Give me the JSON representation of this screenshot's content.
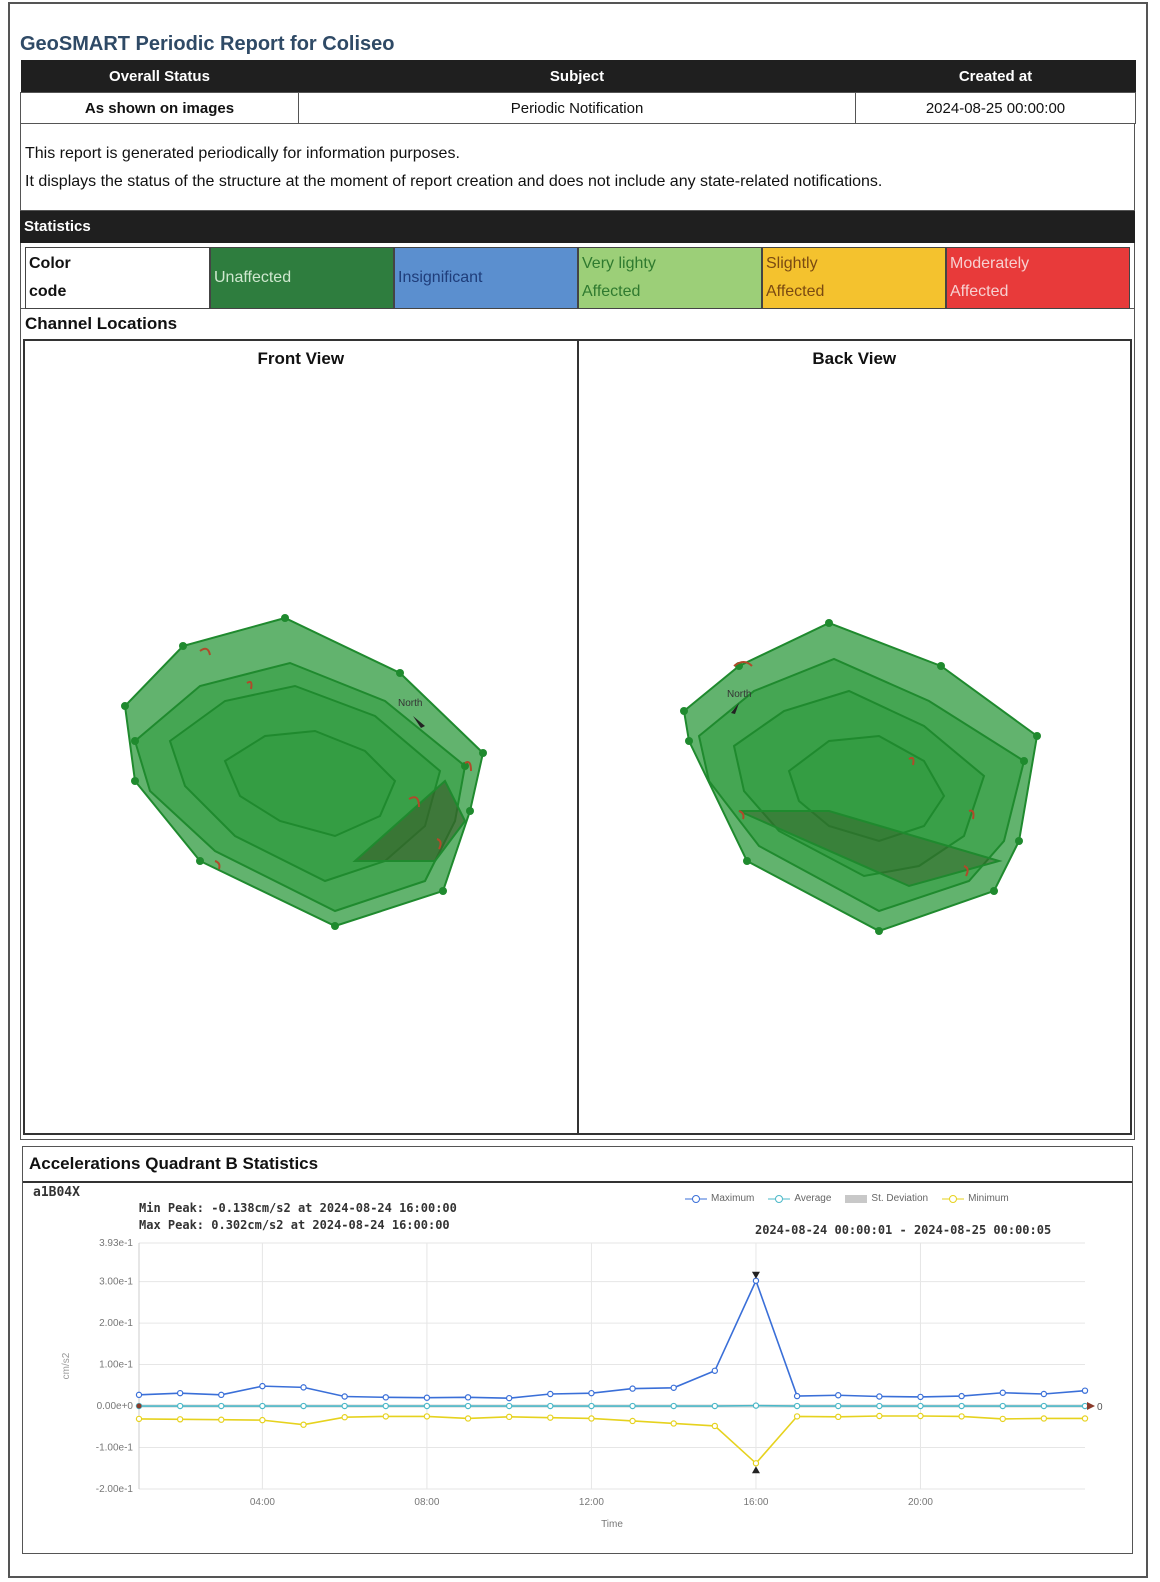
{
  "title": "GeoSMART Periodic Report for Coliseo",
  "header": {
    "columns": [
      "Overall Status",
      "Subject",
      "Created at"
    ],
    "values": [
      "As shown on images",
      "Periodic Notification",
      "2024-08-25 00:00:00"
    ]
  },
  "intro": {
    "line1": "This report is generated periodically for information purposes.",
    "line2": "It displays the status of the structure at the moment of report creation and does not include any state-related notifications."
  },
  "statistics": {
    "title": "Statistics",
    "color_code_label_1": "Color",
    "color_code_label_2": "code",
    "codes": [
      {
        "line1": "Unaffected",
        "line2": "",
        "bg": "#2e7d3e",
        "fg": "#cfe8cf"
      },
      {
        "line1": "Insignificant",
        "line2": "",
        "bg": "#5b8fcf",
        "fg": "#1f3d7a"
      },
      {
        "line1": "Very lighty",
        "line2": "Affected",
        "bg": "#9ccf78",
        "fg": "#2f7a2f"
      },
      {
        "line1": "Slightly",
        "line2": "Affected",
        "bg": "#f4c22e",
        "fg": "#7a4a12"
      },
      {
        "line1": "Moderately",
        "line2": "Affected",
        "bg": "#e83a3a",
        "fg": "#f7d0d0"
      }
    ]
  },
  "channels": {
    "title": "Channel Locations",
    "front_title": "Front View",
    "back_title": "Back View",
    "north_label": "North",
    "structure_color": "#2e9a3e"
  },
  "accelerations": {
    "title": "Accelerations Quadrant B Statistics",
    "channel": "a1B04X",
    "min_peak": "Min Peak: -0.138cm/s2 at 2024-08-24 16:00:00",
    "max_peak": "Max Peak: 0.302cm/s2 at 2024-08-24 16:00:00",
    "range": "2024-08-24 00:00:01 - 2024-08-25 00:00:05",
    "end_label": "0",
    "legend": [
      "Maximum",
      "Average",
      "St. Deviation",
      "Minimum"
    ]
  },
  "chart_data": {
    "type": "line",
    "xlabel": "Time",
    "ylabel": "cm/s2",
    "xlim": [
      1,
      24
    ],
    "ylim": [
      -0.2,
      0.393
    ],
    "yticks": [
      "3.93e-1",
      "3.00e-1",
      "2.00e-1",
      "1.00e-1",
      "0.00e+0",
      "-1.00e-1",
      "-2.00e-1"
    ],
    "ytick_values": [
      0.393,
      0.3,
      0.2,
      0.1,
      0,
      -0.1,
      -0.2
    ],
    "xticks": [
      "04:00",
      "08:00",
      "12:00",
      "16:00",
      "20:00"
    ],
    "xtick_values": [
      4,
      8,
      12,
      16,
      20
    ],
    "x": [
      1,
      2,
      3,
      4,
      5,
      6,
      7,
      8,
      9,
      10,
      11,
      12,
      13,
      14,
      15,
      16,
      17,
      18,
      19,
      20,
      21,
      22,
      23,
      24
    ],
    "series": [
      {
        "name": "Maximum",
        "color": "#3a6fd8",
        "values": [
          0.027,
          0.031,
          0.027,
          0.048,
          0.045,
          0.023,
          0.021,
          0.02,
          0.021,
          0.019,
          0.029,
          0.031,
          0.042,
          0.044,
          0.085,
          0.302,
          0.024,
          0.026,
          0.023,
          0.022,
          0.024,
          0.032,
          0.029,
          0.037
        ]
      },
      {
        "name": "Average",
        "color": "#4bb8c8",
        "values": [
          0,
          0,
          0,
          0,
          0,
          0,
          0,
          0,
          0,
          0,
          0,
          0,
          0,
          0,
          0,
          0.001,
          0,
          0,
          0,
          0,
          0,
          0,
          0,
          0
        ]
      },
      {
        "name": "Minimum",
        "color": "#e6d21e",
        "values": [
          -0.031,
          -0.032,
          -0.033,
          -0.034,
          -0.045,
          -0.027,
          -0.025,
          -0.025,
          -0.03,
          -0.026,
          -0.028,
          -0.03,
          -0.036,
          -0.042,
          -0.048,
          -0.138,
          -0.025,
          -0.026,
          -0.024,
          -0.024,
          -0.025,
          -0.031,
          -0.03,
          -0.03
        ]
      }
    ],
    "grid": true,
    "legend_position": "top-right"
  }
}
